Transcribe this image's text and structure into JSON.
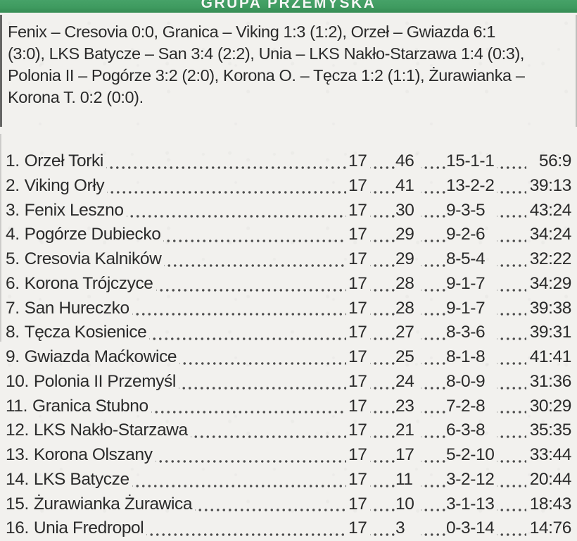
{
  "colors": {
    "banner_green": "#3f9b60",
    "paper": "#f2f1ee",
    "ink": "#2b2b2b"
  },
  "banner": {
    "title": "GRUPA PRZEMYSKA"
  },
  "results": {
    "lines": [
      "Fenix – Cresovia 0:0, Granica – Viking 1:3 (1:2), Orzeł – Gwiazda 6:1",
      "(3:0), LKS Batycze – San 3:4 (2:2), Unia – LKS Nakło-Starzawa 1:4 (0:3),",
      "Polonia II – Pogórze 3:2 (2:0), Korona O. – Tęcza 1:2 (1:1), Żurawianka –",
      "Korona T. 0:2 (0:0)."
    ]
  },
  "table": {
    "rows": [
      {
        "pos": "1.",
        "team": "Orzeł Torki",
        "played": "17",
        "points": "46",
        "record": "15-1-1",
        "goals": "56:9"
      },
      {
        "pos": "2.",
        "team": "Viking Orły",
        "played": "17",
        "points": "41",
        "record": "13-2-2",
        "goals": "39:13"
      },
      {
        "pos": "3.",
        "team": "Fenix Leszno",
        "played": "17",
        "points": "30",
        "record": "9-3-5",
        "goals": "43:24"
      },
      {
        "pos": "4.",
        "team": "Pogórze Dubiecko",
        "played": "17",
        "points": "29",
        "record": "9-2-6",
        "goals": "34:24"
      },
      {
        "pos": "5.",
        "team": "Cresovia Kalników",
        "played": "17",
        "points": "29",
        "record": "8-5-4",
        "goals": "32:22"
      },
      {
        "pos": "6.",
        "team": "Korona Trójczyce",
        "played": "17",
        "points": "28",
        "record": "9-1-7",
        "goals": "34:29"
      },
      {
        "pos": "7.",
        "team": "San Hureczko",
        "played": "17",
        "points": "28",
        "record": "9-1-7",
        "goals": "39:38"
      },
      {
        "pos": "8.",
        "team": "Tęcza Kosienice",
        "played": "17",
        "points": "27",
        "record": "8-3-6",
        "goals": "39:31"
      },
      {
        "pos": "9.",
        "team": "Gwiazda Maćkowice",
        "played": "17",
        "points": "25",
        "record": "8-1-8",
        "goals": "41:41"
      },
      {
        "pos": "10.",
        "team": "Polonia II Przemyśl",
        "played": "17",
        "points": "24",
        "record": "8-0-9",
        "goals": "31:36"
      },
      {
        "pos": "11.",
        "team": "Granica Stubno",
        "played": "17",
        "points": "23",
        "record": "7-2-8",
        "goals": "30:29"
      },
      {
        "pos": "12.",
        "team": "LKS Nakło-Starzawa",
        "played": "17",
        "points": "21",
        "record": "6-3-8",
        "goals": "35:35"
      },
      {
        "pos": "13.",
        "team": "Korona Olszany",
        "played": "17",
        "points": "17",
        "record": "5-2-10",
        "goals": "33:44"
      },
      {
        "pos": "14.",
        "team": "LKS Batycze",
        "played": "17",
        "points": "11",
        "record": "3-2-12",
        "goals": "20:44"
      },
      {
        "pos": "15.",
        "team": "Żurawianka Żurawica",
        "played": "17",
        "points": "10",
        "record": "3-1-13",
        "goals": "18:43"
      },
      {
        "pos": "16.",
        "team": "Unia Fredropol",
        "played": "17",
        "points": "3",
        "record": "0-3-14",
        "goals": "14:76"
      }
    ]
  }
}
